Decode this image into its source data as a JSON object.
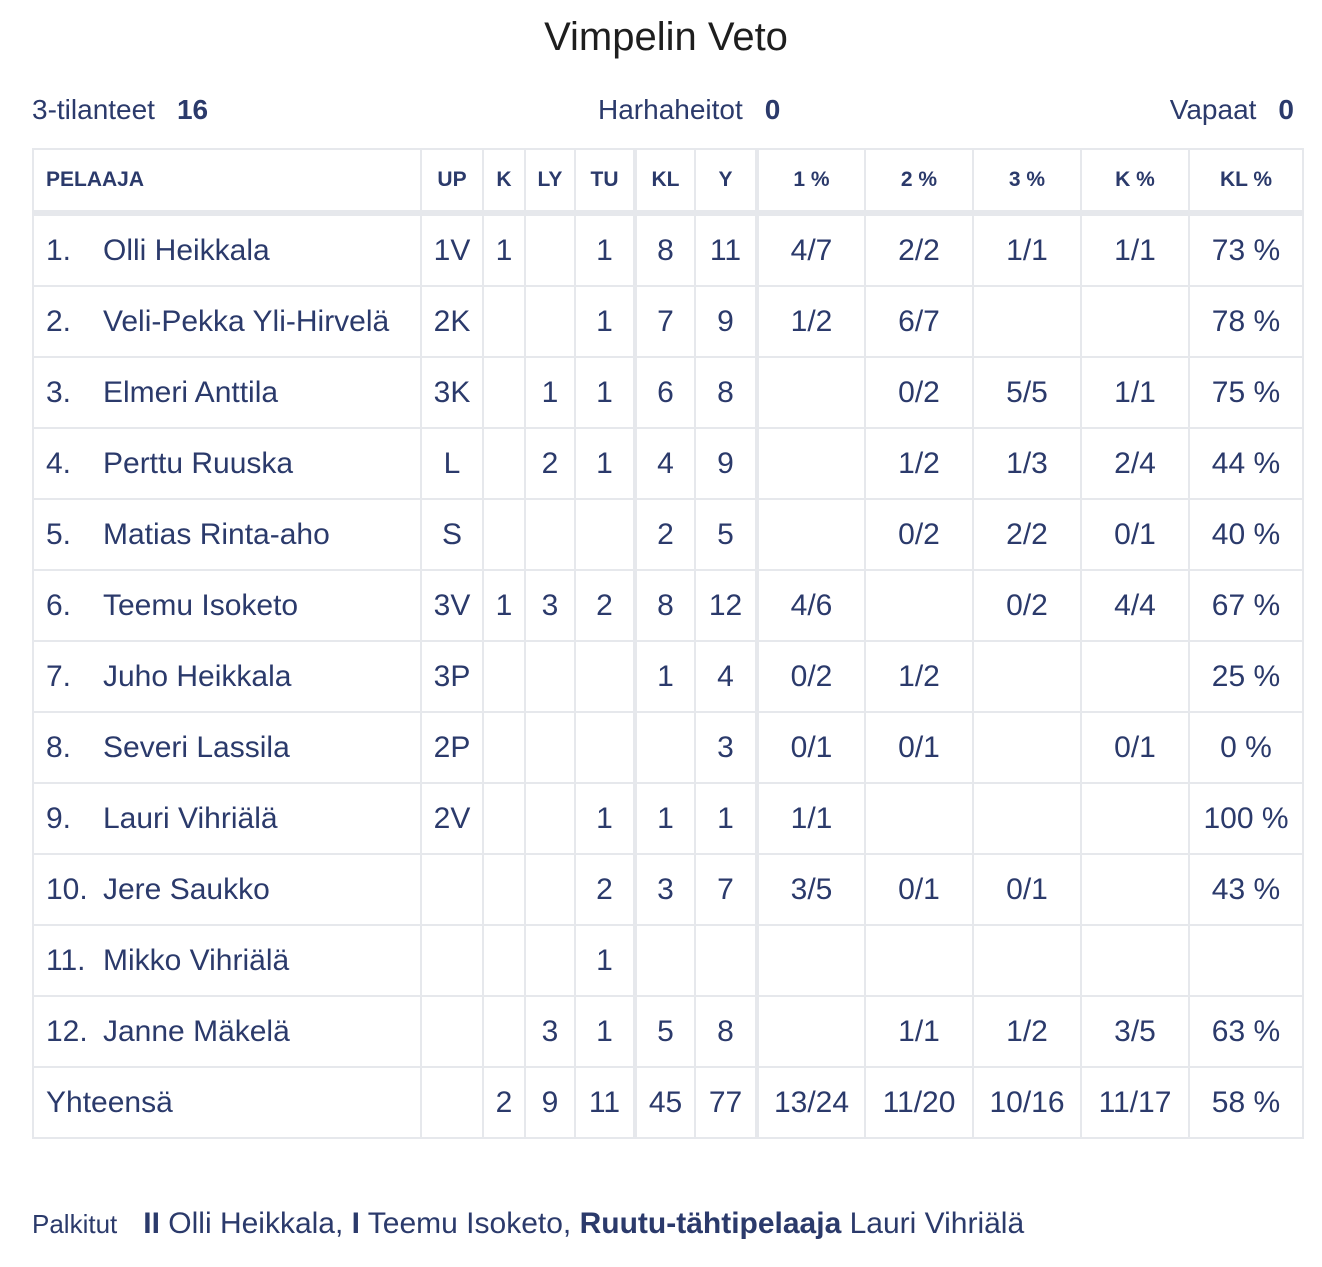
{
  "title": "Vimpelin Veto",
  "stats": {
    "three_label": "3-tilanteet",
    "three_value": "16",
    "fakes_label": "Harhaheitot",
    "fakes_value": "0",
    "free_label": "Vapaat",
    "free_value": "0"
  },
  "table": {
    "headers": [
      "PELAAJA",
      "UP",
      "K",
      "LY",
      "TU",
      "KL",
      "Y",
      "1 %",
      "2 %",
      "3 %",
      "K %",
      "KL %"
    ],
    "rows": [
      {
        "rank": "1.",
        "name": "Olli Heikkala",
        "up": "1V",
        "k": "1",
        "ly": "",
        "tu": "1",
        "kl": "8",
        "y": "11",
        "p1": "4/7",
        "p2": "2/2",
        "p3": "1/1",
        "pk": "1/1",
        "pkl": "73 %"
      },
      {
        "rank": "2.",
        "name": "Veli-Pekka Yli-Hirvelä",
        "up": "2K",
        "k": "",
        "ly": "",
        "tu": "1",
        "kl": "7",
        "y": "9",
        "p1": "1/2",
        "p2": "6/7",
        "p3": "",
        "pk": "",
        "pkl": "78 %"
      },
      {
        "rank": "3.",
        "name": "Elmeri Anttila",
        "up": "3K",
        "k": "",
        "ly": "1",
        "tu": "1",
        "kl": "6",
        "y": "8",
        "p1": "",
        "p2": "0/2",
        "p3": "5/5",
        "pk": "1/1",
        "pkl": "75 %"
      },
      {
        "rank": "4.",
        "name": "Perttu Ruuska",
        "up": "L",
        "k": "",
        "ly": "2",
        "tu": "1",
        "kl": "4",
        "y": "9",
        "p1": "",
        "p2": "1/2",
        "p3": "1/3",
        "pk": "2/4",
        "pkl": "44 %"
      },
      {
        "rank": "5.",
        "name": "Matias Rinta-aho",
        "up": "S",
        "k": "",
        "ly": "",
        "tu": "",
        "kl": "2",
        "y": "5",
        "p1": "",
        "p2": "0/2",
        "p3": "2/2",
        "pk": "0/1",
        "pkl": "40 %"
      },
      {
        "rank": "6.",
        "name": "Teemu Isoketo",
        "up": "3V",
        "k": "1",
        "ly": "3",
        "tu": "2",
        "kl": "8",
        "y": "12",
        "p1": "4/6",
        "p2": "",
        "p3": "0/2",
        "pk": "4/4",
        "pkl": "67 %"
      },
      {
        "rank": "7.",
        "name": "Juho Heikkala",
        "up": "3P",
        "k": "",
        "ly": "",
        "tu": "",
        "kl": "1",
        "y": "4",
        "p1": "0/2",
        "p2": "1/2",
        "p3": "",
        "pk": "",
        "pkl": "25 %"
      },
      {
        "rank": "8.",
        "name": "Severi Lassila",
        "up": "2P",
        "k": "",
        "ly": "",
        "tu": "",
        "kl": "",
        "y": "3",
        "p1": "0/1",
        "p2": "0/1",
        "p3": "",
        "pk": "0/1",
        "pkl": "0 %"
      },
      {
        "rank": "9.",
        "name": "Lauri Vihriälä",
        "up": "2V",
        "k": "",
        "ly": "",
        "tu": "1",
        "kl": "1",
        "y": "1",
        "p1": "1/1",
        "p2": "",
        "p3": "",
        "pk": "",
        "pkl": "100 %"
      },
      {
        "rank": "10.",
        "name": "Jere Saukko",
        "up": "",
        "k": "",
        "ly": "",
        "tu": "2",
        "kl": "3",
        "y": "7",
        "p1": "3/5",
        "p2": "0/1",
        "p3": "0/1",
        "pk": "",
        "pkl": "43 %"
      },
      {
        "rank": "11.",
        "name": "Mikko Vihriälä",
        "up": "",
        "k": "",
        "ly": "",
        "tu": "1",
        "kl": "",
        "y": "",
        "p1": "",
        "p2": "",
        "p3": "",
        "pk": "",
        "pkl": ""
      },
      {
        "rank": "12.",
        "name": "Janne Mäkelä",
        "up": "",
        "k": "",
        "ly": "3",
        "tu": "1",
        "kl": "5",
        "y": "8",
        "p1": "",
        "p2": "1/1",
        "p3": "1/2",
        "pk": "3/5",
        "pkl": "63 %"
      }
    ],
    "total": {
      "label": "Yhteensä",
      "up": "",
      "k": "2",
      "ly": "9",
      "tu": "11",
      "kl": "45",
      "y": "77",
      "p1": "13/24",
      "p2": "11/20",
      "p3": "10/16",
      "pk": "11/17",
      "pkl": "58 %"
    }
  },
  "awards": {
    "label": "Palkitut",
    "first_rank": "II",
    "first_name": " Olli Heikkala, ",
    "second_rank": "I",
    "second_name": " Teemu Isoketo, ",
    "star_label": "Ruutu-tähtipelaaja",
    "star_name": " Lauri Vihriälä"
  }
}
